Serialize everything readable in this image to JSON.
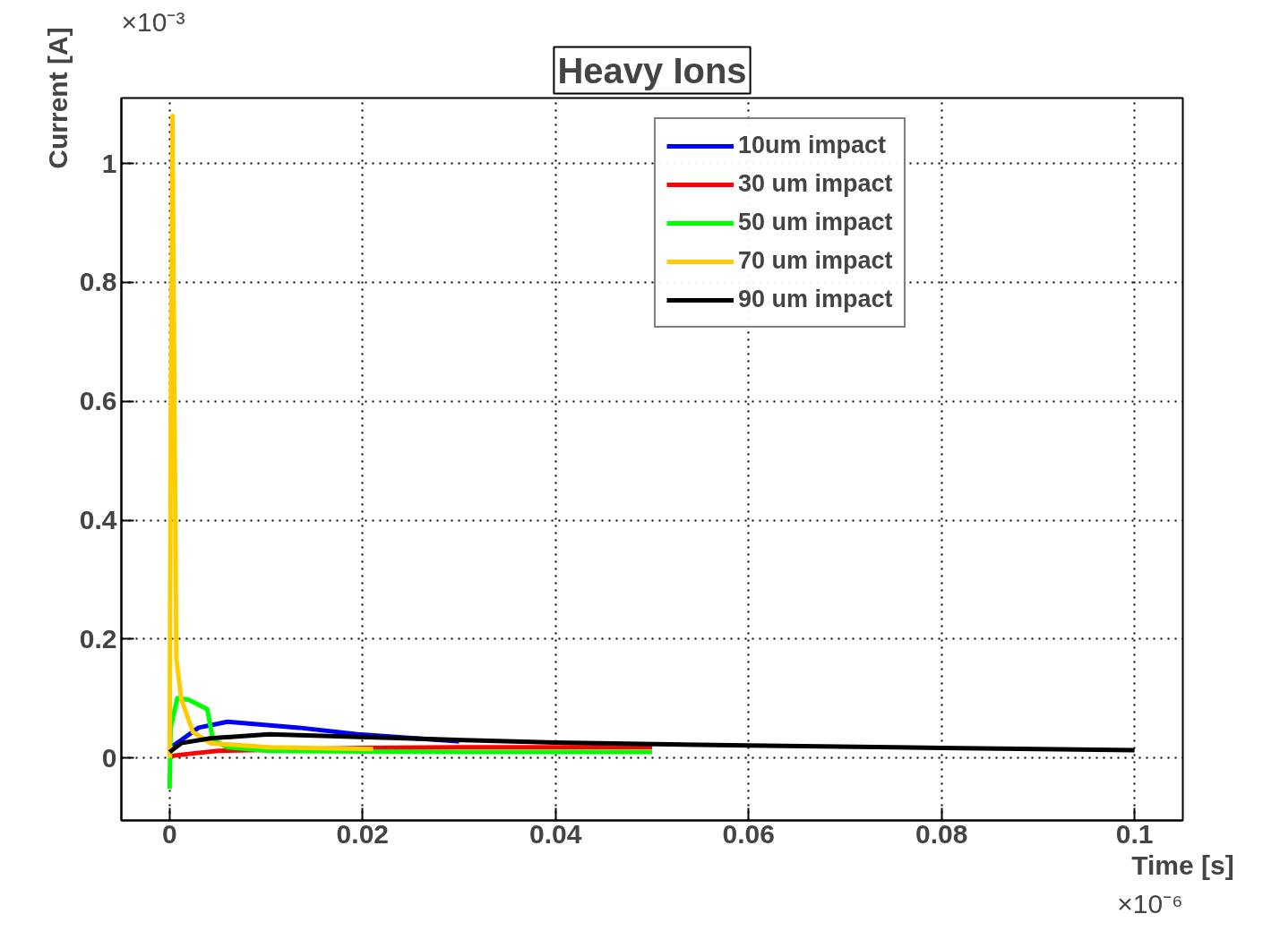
{
  "chart_data": {
    "type": "line",
    "title": "Heavy Ions",
    "xlabel": "Time [s]",
    "ylabel": "Current [A]",
    "annotations": [
      "×10⁻⁶",
      "×10⁻³"
    ],
    "xlim": [
      -0.005,
      0.105
    ],
    "ylim": [
      -0.105,
      1.11
    ],
    "xticks": [
      0,
      0.02,
      0.04,
      0.06,
      0.08,
      0.1
    ],
    "yticks": [
      0,
      0.2,
      0.4,
      0.6,
      0.8,
      1
    ],
    "grid": true,
    "legend": "top right",
    "line_style": "solid",
    "marker": "none",
    "series": [
      {
        "name": "10um impact",
        "color": "#0000ff",
        "x": [
          0.0003,
          0.0012,
          0.003,
          0.006,
          0.0134,
          0.0195,
          0.03
        ],
        "values": [
          0.02,
          0.03,
          0.051,
          0.061,
          0.051,
          0.04,
          0.028
        ]
      },
      {
        "name": "30 um impact",
        "color": "#ff0000",
        "x": [
          0,
          0.002,
          0.005,
          0.02,
          0.03,
          0.04,
          0.05
        ],
        "values": [
          0.003,
          0.007,
          0.012,
          0.017,
          0.018,
          0.018,
          0.018
        ]
      },
      {
        "name": "50 um impact",
        "color": "#00ff00",
        "x": [
          0,
          0.0001,
          0.0008,
          0.002,
          0.0039,
          0.0045,
          0.006,
          0.0103,
          0.02,
          0.03,
          0.05
        ],
        "values": [
          -0.052,
          0.05,
          0.101,
          0.098,
          0.082,
          0.03,
          0.018,
          0.012,
          0.011,
          0.01,
          0.01
        ]
      },
      {
        "name": "70 um impact",
        "color": "#ffcc00",
        "x": [
          0,
          0.0001,
          0.0003,
          0.0005,
          0.0007,
          0.0012,
          0.0024,
          0.0042,
          0.0103,
          0.0211
        ],
        "values": [
          0.0,
          0.5,
          1.08,
          0.6,
          0.167,
          0.1,
          0.044,
          0.025,
          0.018,
          0.015
        ]
      },
      {
        "name": "90 um impact",
        "color": "#000000",
        "x": [
          0,
          0.0012,
          0.0042,
          0.0103,
          0.0244,
          0.04,
          0.06,
          0.08,
          0.1
        ],
        "values": [
          0.01,
          0.025,
          0.033,
          0.04,
          0.033,
          0.026,
          0.021,
          0.017,
          0.013
        ]
      }
    ]
  }
}
